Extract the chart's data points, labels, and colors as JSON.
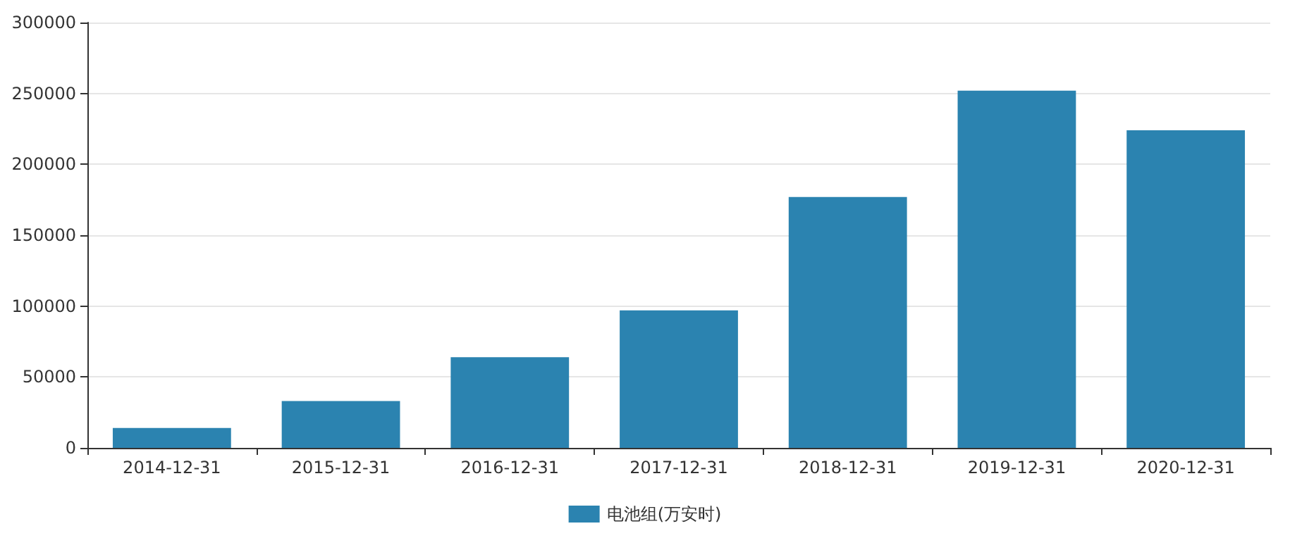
{
  "chart_data": {
    "type": "bar",
    "categories": [
      "2014-12-31",
      "2015-12-31",
      "2016-12-31",
      "2017-12-31",
      "2018-12-31",
      "2019-12-31",
      "2020-12-31"
    ],
    "series": [
      {
        "name": "电池组(万安时)",
        "color": "#2b83b0",
        "values": [
          14000,
          33000,
          64000,
          97000,
          177000,
          252000,
          224000
        ]
      }
    ],
    "ylim": [
      0,
      300000
    ],
    "yticks": [
      0,
      50000,
      100000,
      150000,
      200000,
      250000,
      300000
    ],
    "grid": "y",
    "legend": "bottom"
  }
}
